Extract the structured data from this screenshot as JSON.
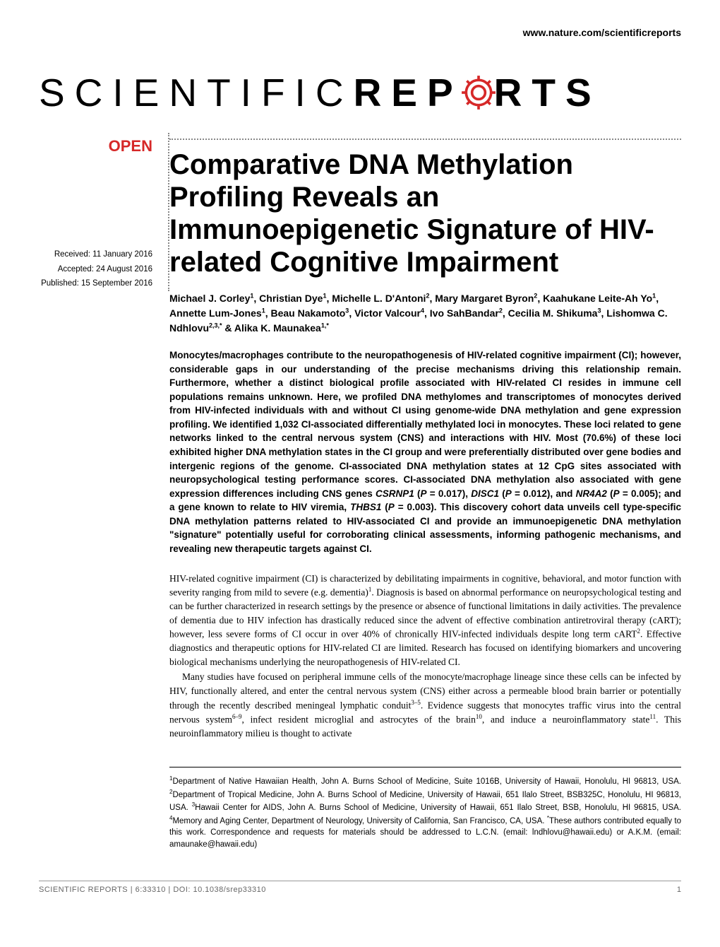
{
  "header": {
    "link": "www.nature.com/scientificreports"
  },
  "logo": {
    "part1": "SCIENTIFIC ",
    "part2_before": "REP",
    "part2_after": "RTS",
    "gear_color": "#d62828"
  },
  "open_badge": "OPEN",
  "dates": {
    "received": "Received: 11 January 2016",
    "accepted": "Accepted: 24 August 2016",
    "published": "Published: 15 September 2016"
  },
  "title": "Comparative DNA Methylation Profiling Reveals an Immunoepigenetic Signature of HIV-related Cognitive Impairment",
  "authors_html": "Michael J. Corley<sup>1</sup>, Christian Dye<sup>1</sup>, Michelle L. D'Antoni<sup>2</sup>, Mary Margaret Byron<sup>2</sup>, Kaahukane Leite-Ah Yo<sup>1</sup>, Annette Lum-Jones<sup>1</sup>, Beau Nakamoto<sup>3</sup>, Victor Valcour<sup>4</sup>, Ivo SahBandar<sup>2</sup>, Cecilia M. Shikuma<sup>3</sup>, Lishomwa C. Ndhlovu<sup>2,3,*</sup> & Alika K. Maunakea<sup>1,*</sup>",
  "abstract_html": "Monocytes/macrophages contribute to the neuropathogenesis of HIV-related cognitive impairment (CI); however, considerable gaps in our understanding of the precise mechanisms driving this relationship remain. Furthermore, whether a distinct biological profile associated with HIV-related CI resides in immune cell populations remains unknown. Here, we profiled DNA methylomes and transcriptomes of monocytes derived from HIV-infected individuals with and without CI using genome-wide DNA methylation and gene expression profiling. We identified 1,032 CI-associated differentially methylated loci in monocytes. These loci related to gene networks linked to the central nervous system (CNS) and interactions with HIV. Most (70.6%) of these loci exhibited higher DNA methylation states in the CI group and were preferentially distributed over gene bodies and intergenic regions of the genome. CI-associated DNA methylation states at 12 CpG sites associated with neuropsychological testing performance scores. CI-associated DNA methylation also associated with gene expression differences including CNS genes <i>CSRNP1</i> (<i>P</i> = 0.017), <i>DISC1</i> (<i>P</i> = 0.012), and <i>NR4A2</i> (<i>P</i> = 0.005); and a gene known to relate to HIV viremia, <i>THBS1</i> (<i>P</i> = 0.003). This discovery cohort data unveils cell type-specific DNA methylation patterns related to HIV-associated CI and provide an immunoepigenetic DNA methylation \"signature\" potentially useful for corroborating clinical assessments, informing pathogenic mechanisms, and revealing new therapeutic targets against CI.",
  "body": {
    "p1": "HIV-related cognitive impairment (CI) is characterized by debilitating impairments in cognitive, behavioral, and motor function with severity ranging from mild to severe (e.g. dementia)<sup>1</sup>. Diagnosis is based on abnormal performance on neuropsychological testing and can be further characterized in research settings by the presence or absence of functional limitations in daily activities. The prevalence of dementia due to HIV infection has drastically reduced since the advent of effective combination antiretroviral therapy (cART); however, less severe forms of CI occur in over 40% of chronically HIV-infected individuals despite long term cART<sup>2</sup>. Effective diagnostics and therapeutic options for HIV-related CI are limited. Research has focused on identifying biomarkers and uncovering biological mechanisms underlying the neuropathogenesis of HIV-related CI.",
    "p2": "Many studies have focused on peripheral immune cells of the monocyte/macrophage lineage since these cells can be infected by HIV, functionally altered, and enter the central nervous system (CNS) either across a permeable blood brain barrier or potentially through the recently described meningeal lymphatic conduit<sup>3–5</sup>. Evidence suggests that monocytes traffic virus into the central nervous system<sup>6–9</sup>, infect resident microglial and astrocytes of the brain<sup>10</sup>, and induce a neuroinflammatory state<sup>11</sup>. This neuroinflammatory milieu is thought to activate"
  },
  "affiliations_html": "<sup>1</sup>Department of Native Hawaiian Health, John A. Burns School of Medicine, Suite 1016B, University of Hawaii, Honolulu, HI 96813, USA. <sup>2</sup>Department of Tropical Medicine, John A. Burns School of Medicine, University of Hawaii, 651 Ilalo Street, BSB325C, Honolulu, HI 96813, USA. <sup>3</sup>Hawaii Center for AIDS, John A. Burns School of Medicine, University of Hawaii, 651 Ilalo Street, BSB, Honolulu, HI 96815, USA. <sup>4</sup>Memory and Aging Center, Department of Neurology, University of California, San Francisco, CA, USA. <sup>*</sup>These authors contributed equally to this work. Correspondence and requests for materials should be addressed to L.C.N. (email: lndhlovu@hawaii.edu) or A.K.M. (email: amaunake@hawaii.edu)",
  "footer": {
    "citation": "SCIENTIFIC REPORTS | 6:33310 | DOI: 10.1038/srep33310",
    "page": "1"
  },
  "colors": {
    "accent": "#d62828",
    "text": "#000000",
    "footer_text": "#666666",
    "dotted": "#888888"
  }
}
